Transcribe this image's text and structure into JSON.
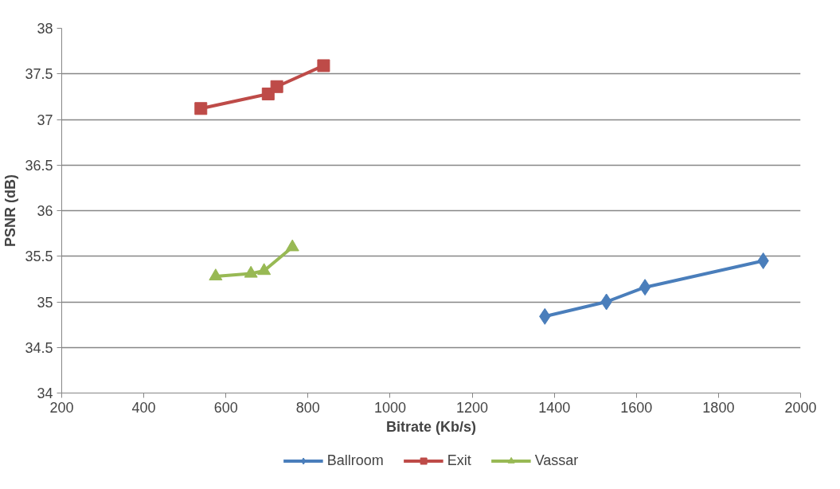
{
  "chart_data": {
    "type": "line",
    "xlabel": "Bitrate (Kb/s)",
    "ylabel": "PSNR (dB)",
    "xlim": [
      200,
      2000
    ],
    "xticks": [
      200,
      400,
      600,
      800,
      1000,
      1200,
      1400,
      1600,
      1800,
      2000
    ],
    "ylim": [
      34,
      38
    ],
    "yticks": [
      34,
      34.5,
      35,
      35.5,
      36,
      36.5,
      37,
      37.5,
      38
    ],
    "grid": "y",
    "legend": "bottom",
    "series": [
      {
        "name": "Ballroom",
        "color": "#4a7ebb",
        "marker": "diamond",
        "x": [
          1377,
          1527,
          1621,
          1909
        ],
        "values": [
          34.84,
          35.0,
          35.16,
          35.45
        ]
      },
      {
        "name": "Exit",
        "color": "#be4b48",
        "marker": "square",
        "x": [
          539,
          703,
          724,
          838
        ],
        "values": [
          37.12,
          37.28,
          37.36,
          37.59
        ]
      },
      {
        "name": "Vassar",
        "color": "#98b954",
        "marker": "triangle",
        "x": [
          575,
          661,
          693,
          762
        ],
        "values": [
          35.28,
          35.31,
          35.34,
          35.6
        ]
      }
    ]
  }
}
